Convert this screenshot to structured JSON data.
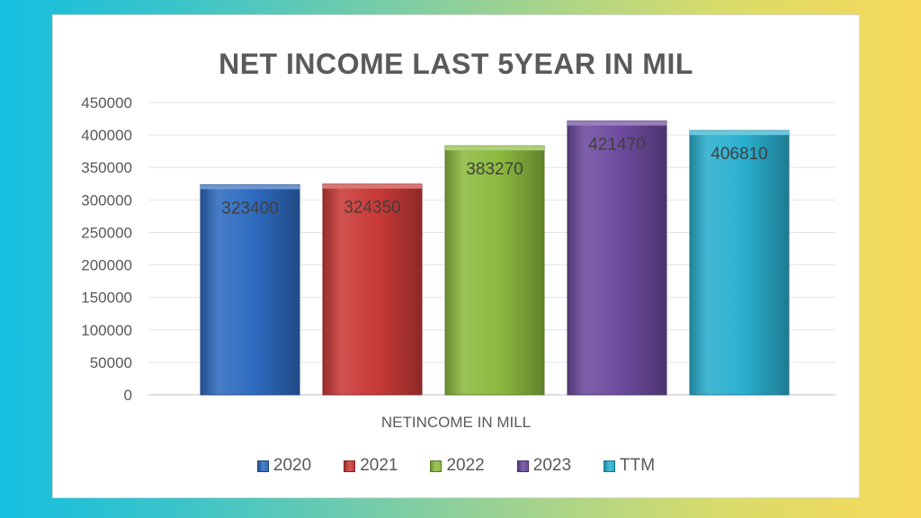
{
  "chart_data": {
    "type": "bar",
    "title": "NET INCOME LAST 5YEAR IN MIL",
    "xlabel": "NETINCOME IN MILL",
    "ylabel": "",
    "ylim": [
      0,
      450000
    ],
    "yticks": [
      0,
      50000,
      100000,
      150000,
      200000,
      250000,
      300000,
      350000,
      400000,
      450000
    ],
    "grid": true,
    "legend_position": "bottom",
    "series": [
      {
        "name": "2020",
        "values": [
          323400
        ],
        "color": "#2e6bbf"
      },
      {
        "name": "2021",
        "values": [
          324350
        ],
        "color": "#c93a37"
      },
      {
        "name": "2022",
        "values": [
          383270
        ],
        "color": "#8cba3f"
      },
      {
        "name": "2023",
        "values": [
          421470
        ],
        "color": "#6d4a9e"
      },
      {
        "name": "TTM",
        "values": [
          406810
        ],
        "color": "#2ab0cf"
      }
    ]
  }
}
